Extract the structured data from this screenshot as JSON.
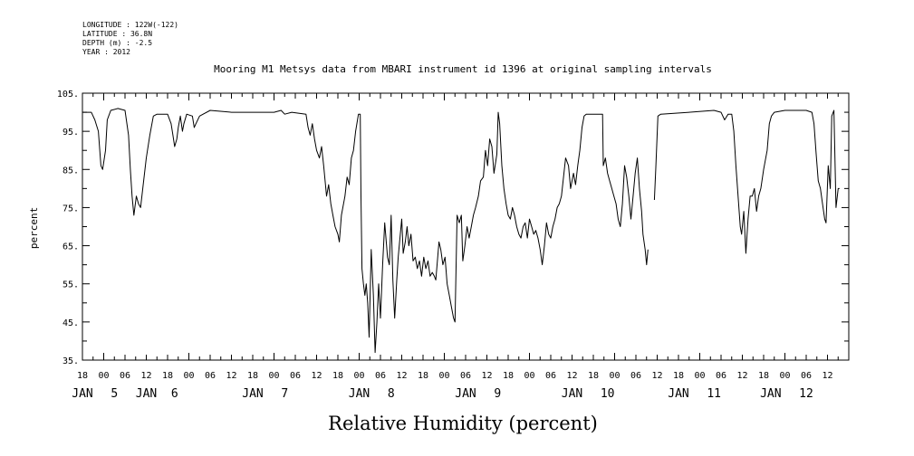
{
  "header": {
    "meta_lines": [
      "LONGITUDE : 122W(-122)",
      "LATITUDE : 36.8N",
      "DEPTH (m) : -2.5",
      "YEAR : 2012"
    ]
  },
  "chart_data": {
    "type": "line",
    "title": "Mooring M1 Metsys data from MBARI instrument id 1396 at original sampling intervals",
    "xlabel": "Relative Humidity (percent)",
    "ylabel": "percent",
    "ylim": [
      35,
      105
    ],
    "yticks": [
      "35.",
      "45.",
      "55.",
      "65.",
      "75.",
      "85.",
      "95.",
      "105."
    ],
    "xlim_hours": [
      -6,
      210
    ],
    "hour_ticks": [
      "18",
      "00",
      "06",
      "12",
      "18",
      "00",
      "06",
      "12",
      "18",
      "00",
      "06",
      "12",
      "18",
      "00",
      "06",
      "12",
      "18",
      "00",
      "06",
      "12",
      "18",
      "00",
      "06",
      "12",
      "18",
      "00",
      "06",
      "12",
      "18",
      "00",
      "06",
      "12",
      "18",
      "00",
      "06",
      "12"
    ],
    "day_labels": [
      {
        "text": "JAN",
        "hour": -6
      },
      {
        "text": "5",
        "hour": 3
      },
      {
        "text": "JAN",
        "hour": 12
      },
      {
        "text": "6",
        "hour": 20
      },
      {
        "text": "JAN",
        "hour": 42
      },
      {
        "text": "7",
        "hour": 51
      },
      {
        "text": "JAN",
        "hour": 72
      },
      {
        "text": "8",
        "hour": 81
      },
      {
        "text": "JAN",
        "hour": 102
      },
      {
        "text": "9",
        "hour": 111
      },
      {
        "text": "JAN",
        "hour": 132
      },
      {
        "text": "10",
        "hour": 142
      },
      {
        "text": "JAN",
        "hour": 162
      },
      {
        "text": "11",
        "hour": 172
      },
      {
        "text": "JAN",
        "hour": 188
      },
      {
        "text": "12",
        "hour": 198
      }
    ],
    "series": [
      {
        "segments": [
          [
            [
              -6,
              100
            ],
            [
              -3.5,
              100
            ],
            [
              -2.5,
              98
            ],
            [
              -1.5,
              95
            ],
            [
              -0.8,
              86
            ],
            [
              -0.3,
              85
            ],
            [
              0.5,
              90
            ],
            [
              1,
              98
            ],
            [
              2,
              100.5
            ],
            [
              4,
              101
            ],
            [
              6,
              100.5
            ],
            [
              7,
              94
            ],
            [
              7.5,
              85
            ],
            [
              8,
              78
            ],
            [
              8.5,
              73
            ],
            [
              9.2,
              78
            ],
            [
              9.8,
              76
            ],
            [
              10.4,
              75
            ],
            [
              11,
              80
            ],
            [
              12,
              88
            ],
            [
              13,
              94
            ],
            [
              14,
              99
            ],
            [
              15,
              99.5
            ],
            [
              18,
              99.5
            ],
            [
              19,
              97
            ],
            [
              19.5,
              94
            ],
            [
              20,
              91
            ],
            [
              20.6,
              93
            ],
            [
              21,
              96
            ],
            [
              21.6,
              99
            ],
            [
              22.2,
              95
            ],
            [
              22.6,
              97
            ],
            [
              23.4,
              99.5
            ],
            [
              25,
              99
            ],
            [
              25.5,
              96
            ],
            [
              26,
              97
            ],
            [
              27,
              99
            ],
            [
              30,
              100.5
            ],
            [
              36,
              100
            ],
            [
              42,
              100
            ],
            [
              48,
              100
            ],
            [
              50,
              100.5
            ],
            [
              51,
              99.5
            ],
            [
              53,
              100
            ],
            [
              57,
              99.5
            ],
            [
              57.6,
              96
            ],
            [
              58.2,
              94
            ],
            [
              58.8,
              97
            ],
            [
              59.4,
              93
            ],
            [
              60,
              90
            ],
            [
              60.8,
              88
            ],
            [
              61.4,
              91
            ],
            [
              62,
              86
            ],
            [
              62.8,
              78
            ],
            [
              63.4,
              81
            ],
            [
              64,
              76
            ],
            [
              64.6,
              73
            ],
            [
              65.2,
              70
            ],
            [
              66,
              68
            ],
            [
              66.4,
              66
            ],
            [
              67,
              73
            ],
            [
              68,
              78
            ],
            [
              68.6,
              83
            ],
            [
              69.2,
              81
            ],
            [
              69.8,
              88
            ],
            [
              70.4,
              90
            ],
            [
              71,
              95
            ],
            [
              71.8,
              99.5
            ],
            [
              72.3,
              99.5
            ],
            [
              72.5,
              78
            ],
            [
              72.8,
              59
            ],
            [
              73.2,
              55
            ],
            [
              73.6,
              52
            ],
            [
              74,
              55
            ],
            [
              74.4,
              50
            ],
            [
              74.8,
              41
            ],
            [
              75.4,
              64
            ],
            [
              76,
              52
            ],
            [
              76.5,
              37
            ],
            [
              77,
              45
            ],
            [
              77.5,
              55
            ],
            [
              78,
              46
            ],
            [
              78.6,
              60
            ],
            [
              79.2,
              71
            ],
            [
              80,
              62
            ],
            [
              80.5,
              60
            ],
            [
              81,
              73
            ],
            [
              81.5,
              56
            ],
            [
              82,
              46
            ],
            [
              82.6,
              56
            ],
            [
              83,
              62
            ],
            [
              83.6,
              68
            ],
            [
              84,
              72
            ],
            [
              84.4,
              63
            ],
            [
              85,
              66
            ],
            [
              85.5,
              70
            ],
            [
              86,
              65
            ],
            [
              86.6,
              68
            ],
            [
              87.2,
              61
            ],
            [
              87.8,
              62
            ],
            [
              88.4,
              59
            ],
            [
              89,
              61
            ],
            [
              89.6,
              57
            ],
            [
              90.2,
              62
            ],
            [
              90.8,
              59
            ],
            [
              91.4,
              61
            ],
            [
              92,
              57
            ],
            [
              92.6,
              58
            ],
            [
              93.2,
              57
            ],
            [
              93.6,
              56
            ],
            [
              94.5,
              66
            ],
            [
              95,
              64
            ],
            [
              95.6,
              60
            ],
            [
              96.2,
              62
            ],
            [
              96.8,
              55
            ],
            [
              97.4,
              52
            ],
            [
              98,
              49
            ],
            [
              98.6,
              46
            ],
            [
              99,
              45
            ],
            [
              99.6,
              73
            ],
            [
              100.2,
              71
            ],
            [
              100.8,
              73
            ],
            [
              101.2,
              61
            ],
            [
              101.8,
              65
            ],
            [
              102.4,
              70
            ],
            [
              103,
              67
            ],
            [
              103.6,
              70
            ],
            [
              104.2,
              73
            ],
            [
              104.8,
              75
            ],
            [
              105.6,
              78
            ],
            [
              106.2,
              82
            ],
            [
              107,
              83
            ],
            [
              107.6,
              90
            ],
            [
              108.2,
              86
            ],
            [
              108.8,
              93
            ],
            [
              109.4,
              91
            ],
            [
              110,
              84
            ],
            [
              110.8,
              89
            ],
            [
              111.2,
              100
            ],
            [
              111.6,
              97
            ],
            [
              112.2,
              86
            ],
            [
              112.8,
              80
            ],
            [
              113.4,
              76
            ],
            [
              114,
              73
            ],
            [
              114.6,
              72
            ],
            [
              115.2,
              75
            ],
            [
              115.8,
              73
            ],
            [
              116.4,
              70
            ],
            [
              117,
              68
            ],
            [
              117.6,
              67
            ],
            [
              118.2,
              70
            ],
            [
              118.8,
              71
            ],
            [
              119.4,
              67
            ],
            [
              120,
              72
            ],
            [
              120.6,
              70
            ],
            [
              121.2,
              68
            ],
            [
              121.8,
              69
            ],
            [
              122.4,
              67
            ],
            [
              123,
              64
            ],
            [
              123.6,
              60
            ],
            [
              124.2,
              65
            ],
            [
              124.8,
              71
            ],
            [
              125.4,
              68
            ],
            [
              126,
              67
            ],
            [
              126.6,
              70
            ],
            [
              127.2,
              72
            ],
            [
              127.8,
              75
            ],
            [
              128.4,
              76
            ],
            [
              129,
              78
            ],
            [
              129.6,
              83
            ],
            [
              130.2,
              88
            ],
            [
              131,
              86
            ],
            [
              131.6,
              80
            ],
            [
              132.4,
              84
            ],
            [
              133,
              81
            ],
            [
              133.6,
              86
            ],
            [
              134.2,
              90
            ],
            [
              134.8,
              96
            ],
            [
              135.4,
              99
            ],
            [
              136,
              99.5
            ],
            [
              139,
              99.5
            ],
            [
              140.6,
              99.5
            ],
            [
              140.8,
              86
            ],
            [
              141.4,
              88
            ],
            [
              142,
              84
            ],
            [
              142.6,
              82
            ],
            [
              143.2,
              80
            ],
            [
              143.8,
              78
            ],
            [
              144.4,
              76
            ],
            [
              145,
              72
            ],
            [
              145.6,
              70
            ],
            [
              146.2,
              76
            ],
            [
              146.8,
              86
            ],
            [
              147.4,
              83
            ],
            [
              148,
              78
            ],
            [
              148.6,
              72
            ],
            [
              149.2,
              78
            ],
            [
              149.8,
              84
            ],
            [
              150.4,
              88
            ],
            [
              151,
              80
            ],
            [
              151.6,
              74
            ],
            [
              152,
              68
            ],
            [
              152.6,
              64
            ],
            [
              153,
              60
            ],
            [
              153.4,
              64
            ]
          ],
          [
            [
              155.2,
              77
            ],
            [
              155.6,
              85
            ],
            [
              156.2,
              99
            ],
            [
              157,
              99.5
            ],
            [
              165,
              100
            ],
            [
              172,
              100.5
            ],
            [
              174,
              100
            ],
            [
              175,
              98
            ],
            [
              176,
              99.5
            ],
            [
              177,
              99.5
            ],
            [
              177.6,
              95
            ],
            [
              178.2,
              86
            ],
            [
              178.8,
              78
            ],
            [
              179.4,
              70
            ],
            [
              179.8,
              68
            ],
            [
              180.4,
              74
            ],
            [
              181,
              63
            ],
            [
              181.6,
              72
            ],
            [
              182.2,
              78
            ],
            [
              182.8,
              78
            ],
            [
              183.4,
              80
            ],
            [
              184,
              74
            ],
            [
              184.6,
              78
            ],
            [
              185.2,
              80
            ],
            [
              186,
              85
            ],
            [
              187,
              90
            ],
            [
              187.6,
              97
            ],
            [
              188.2,
              99
            ],
            [
              189,
              100
            ],
            [
              192,
              100.5
            ],
            [
              198,
              100.5
            ],
            [
              199.6,
              100
            ],
            [
              200.2,
              97
            ],
            [
              200.8,
              89
            ],
            [
              201.4,
              82
            ],
            [
              202,
              80
            ],
            [
              202.6,
              76
            ],
            [
              203.2,
              72
            ],
            [
              203.6,
              71
            ],
            [
              204.2,
              86
            ],
            [
              204.8,
              80
            ],
            [
              205.2,
              99
            ],
            [
              205.8,
              100.5
            ],
            [
              206.4,
              75
            ],
            [
              207,
              80
            ],
            [
              207.4,
              80
            ]
          ]
        ]
      }
    ]
  }
}
